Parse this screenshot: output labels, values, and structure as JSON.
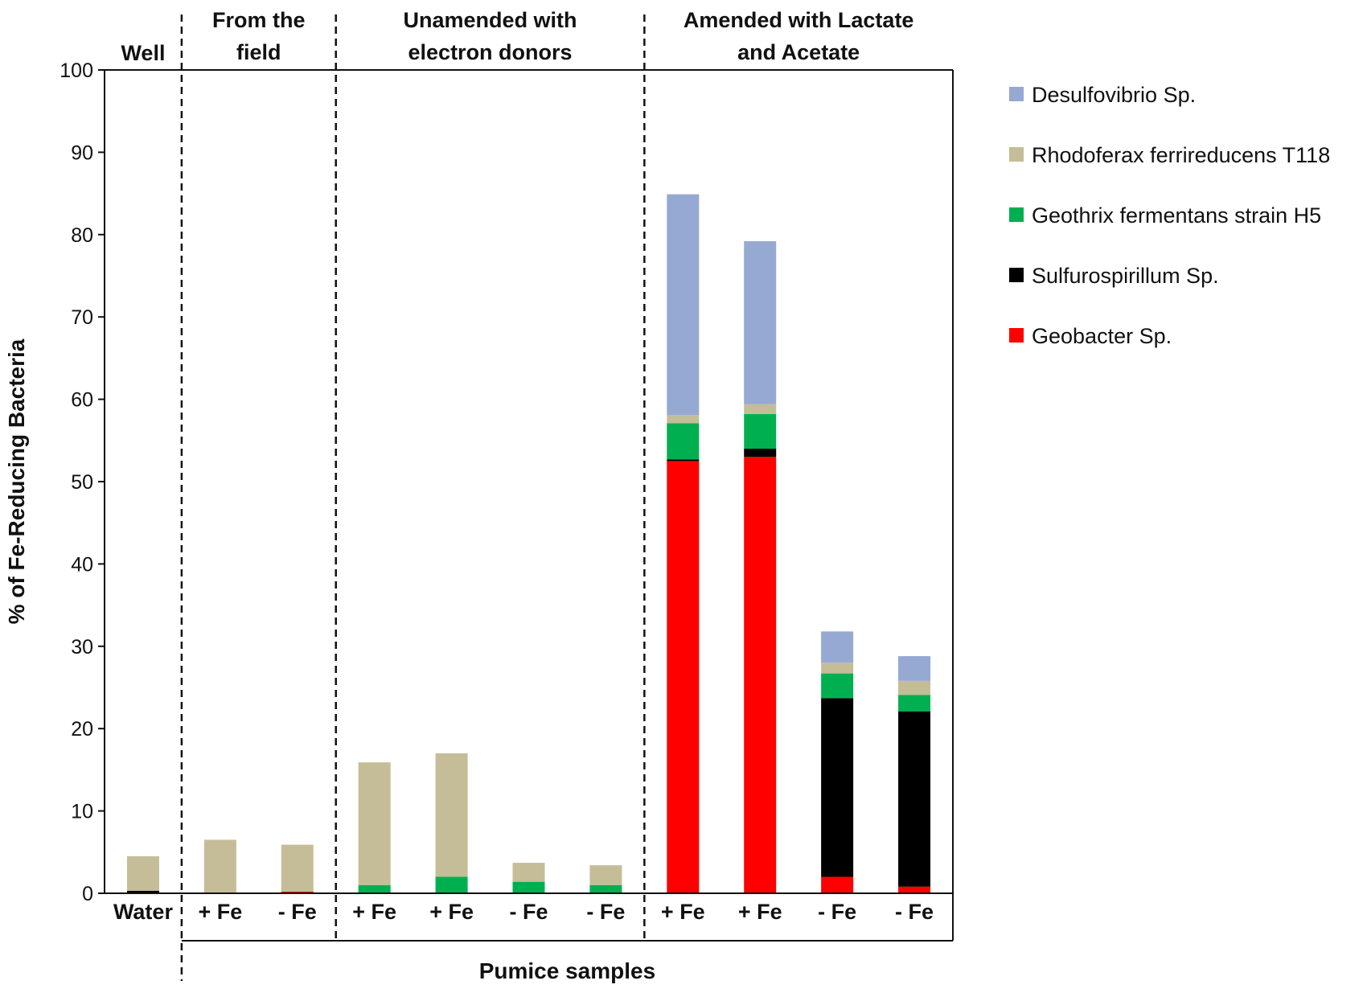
{
  "chart_data": {
    "type": "bar",
    "stacked": true,
    "ylabel": "% of Fe-Reducing Bacteria",
    "xlabel": "Pumice samples",
    "ylim": [
      0,
      100
    ],
    "yticks": [
      0,
      10,
      20,
      30,
      40,
      50,
      60,
      70,
      80,
      90,
      100
    ],
    "categories": [
      "Water",
      "+ Fe",
      "- Fe",
      "+ Fe",
      "+ Fe",
      "- Fe",
      "- Fe",
      "+ Fe",
      "+ Fe",
      "- Fe",
      "- Fe"
    ],
    "groups": [
      {
        "label_lines": [
          "Well"
        ],
        "start": 0,
        "end": 0
      },
      {
        "label_lines": [
          "From the",
          "field"
        ],
        "start": 1,
        "end": 2
      },
      {
        "label_lines": [
          "Unamended with",
          "electron donors"
        ],
        "start": 3,
        "end": 6
      },
      {
        "label_lines": [
          "Amended with Lactate",
          "and Acetate"
        ],
        "start": 7,
        "end": 10
      }
    ],
    "series": [
      {
        "name": "Geobacter Sp.",
        "color": "#ff0000",
        "values": [
          0,
          0,
          0.2,
          0,
          0,
          0,
          0,
          52.5,
          53,
          2,
          0.8
        ]
      },
      {
        "name": "Sulfurospirillum Sp.",
        "color": "#000000",
        "values": [
          0.3,
          0,
          0,
          0,
          0,
          0,
          0,
          0.2,
          1,
          21.7,
          21.3
        ]
      },
      {
        "name": "Geothrix fermentans strain H5",
        "color": "#00b050",
        "values": [
          0,
          0,
          0,
          1,
          2,
          1.4,
          1,
          4.4,
          4.2,
          3,
          2
        ]
      },
      {
        "name": "Rhodoferax ferrireducens T118",
        "color": "#c4bd97",
        "values": [
          4.2,
          6.5,
          5.7,
          14.9,
          15,
          2.3,
          2.4,
          1,
          1.2,
          1.3,
          1.7
        ]
      },
      {
        "name": "Desulfovibrio Sp.",
        "color": "#95a9d2",
        "values": [
          0,
          0,
          0,
          0,
          0,
          0,
          0,
          26.8,
          19.8,
          3.8,
          3
        ]
      }
    ],
    "legend": [
      "Desulfovibrio Sp.",
      "Rhodoferax ferrireducens T118",
      "Geothrix fermentans strain H5",
      "Sulfurospirillum Sp.",
      "Geobacter Sp."
    ],
    "legend_position": "right"
  }
}
